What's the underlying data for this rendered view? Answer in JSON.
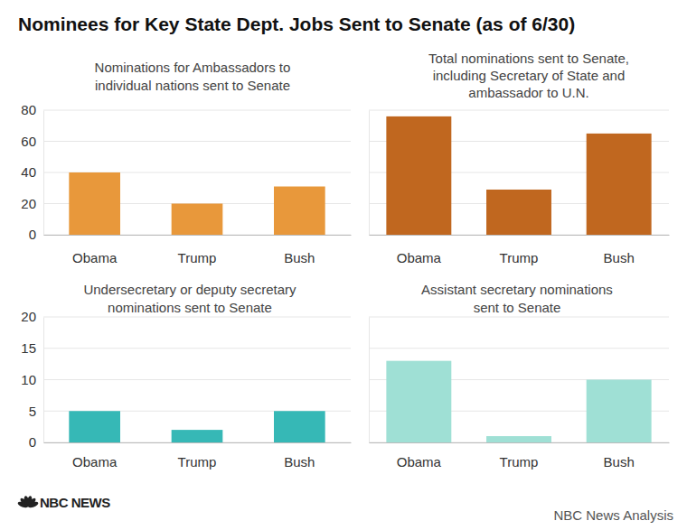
{
  "header": {
    "title": "Nominees for Key State Dept. Jobs Sent to Senate (as of 6/30)"
  },
  "chart_data": [
    {
      "type": "bar",
      "title": [
        "Nominations for Ambassadors to",
        "individual nations sent to Senate"
      ],
      "categories": [
        "Obama",
        "Trump",
        "Bush"
      ],
      "values": [
        40,
        20,
        31
      ],
      "color": "#e8983b",
      "ylim": [
        0,
        80
      ],
      "yticks": [
        0,
        20,
        40,
        60,
        80
      ],
      "grid": true
    },
    {
      "type": "bar",
      "title": [
        "Total nominations sent to Senate,",
        "including Secretary of State and",
        "ambassador to U.N."
      ],
      "categories": [
        "Obama",
        "Trump",
        "Bush"
      ],
      "values": [
        76,
        29,
        65
      ],
      "color": "#c0671f",
      "ylim": [
        0,
        80
      ],
      "yticks": [
        0,
        20,
        40,
        60,
        80
      ],
      "grid": true,
      "tick_labels": "x"
    },
    {
      "type": "bar",
      "title": [
        "Undersecretary or deputy secretary",
        "nominations sent to Senate"
      ],
      "categories": [
        "Obama",
        "Trump",
        "Bush"
      ],
      "values": [
        5,
        2,
        5
      ],
      "color": "#36b8b6",
      "ylim": [
        0,
        20
      ],
      "yticks": [
        0,
        5,
        10,
        15,
        20
      ],
      "grid": true
    },
    {
      "type": "bar",
      "title": [
        "Assistant secretary nominations",
        "sent to Senate"
      ],
      "categories": [
        "Obama",
        "Trump",
        "Bush"
      ],
      "values": [
        13,
        1,
        10
      ],
      "color": "#9fe0d5",
      "ylim": [
        0,
        20
      ],
      "yticks": [
        0,
        5,
        10,
        15,
        20
      ],
      "grid": true,
      "tick_labels": "x"
    }
  ],
  "footer": {
    "logo": "NBC NEWS",
    "source": "NBC News Analysis"
  }
}
